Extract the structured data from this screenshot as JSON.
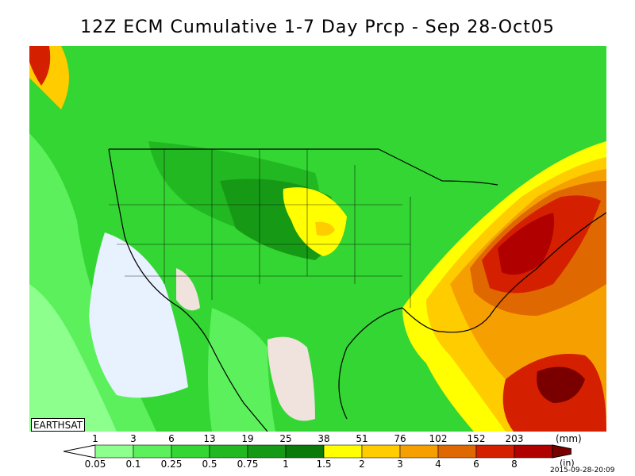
{
  "title": "12Z ECM Cumulative 1-7 Day Prcp - Sep 28-Oct05",
  "watermark": "EARTHSAT",
  "legend": {
    "mm_unit": "(mm)",
    "in_unit": "(in)",
    "mm_labels": [
      "1",
      "3",
      "6",
      "13",
      "19",
      "25",
      "38",
      "51",
      "76",
      "102",
      "152",
      "203"
    ],
    "in_labels": [
      "0.05",
      "0.1",
      "0.25",
      "0.5",
      "0.75",
      "1",
      "1.5",
      "2",
      "3",
      "4",
      "6",
      "8"
    ],
    "colors": [
      "#ffffff",
      "#8cff8c",
      "#5cf05c",
      "#33d633",
      "#22b822",
      "#169a16",
      "#0a7a0a",
      "#ffff00",
      "#ffcc00",
      "#f5a000",
      "#e06800",
      "#d42000",
      "#b00000",
      "#7a0000"
    ]
  },
  "timestamp": "2015-09-28-20:09"
}
